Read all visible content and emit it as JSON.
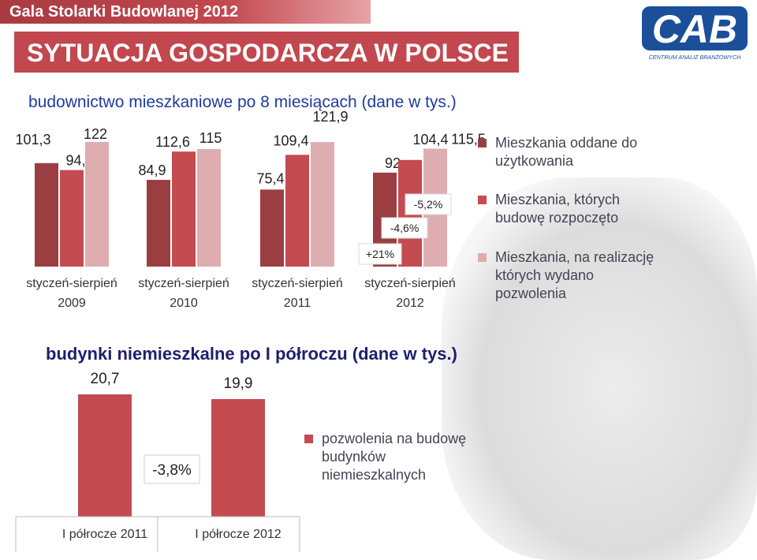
{
  "header": {
    "event_title": "Gala Stolarki Budowlanej 2012",
    "main_title": "SYTUACJA GOSPODARCZA W POLSCE",
    "logo_text": "CENTRUM ANALIZ BRANŻOWYCH",
    "logo_letters": "CAB"
  },
  "colors": {
    "series1": "#9b3e42",
    "series2": "#c44b50",
    "series3": "#deadb0",
    "header_bar": "#c2474e"
  },
  "chart_data": [
    {
      "type": "bar",
      "title": "budownictwo mieszkaniowe po 8 miesiącach (dane w tys.)",
      "categories": [
        {
          "line1": "styczeń-sierpień",
          "line2": "2009"
        },
        {
          "line1": "styczeń-sierpień",
          "line2": "2010"
        },
        {
          "line1": "styczeń-sierpień",
          "line2": "2011"
        },
        {
          "line1": "styczeń-sierpień",
          "line2": "2012"
        }
      ],
      "series": [
        {
          "name": "Mieszkania oddane do użytkowania",
          "values": [
            101.3,
            84.9,
            75.4,
            92
          ],
          "labels": [
            "101,3",
            "84,9",
            "75,4",
            "92"
          ]
        },
        {
          "name": "Mieszkania, których budowę rozpoczęto",
          "values": [
            94.5,
            112.6,
            109.4,
            104.4
          ],
          "labels": [
            "94,5",
            "112,6",
            "109,4",
            "104,4"
          ]
        },
        {
          "name": "Mieszkania, na realizację których wydano pozwolenia",
          "values": [
            122,
            115,
            121.9,
            115.5
          ],
          "labels": [
            "122",
            "115",
            "121,9",
            "115,5"
          ]
        }
      ],
      "annotations": [
        "+21%",
        "-4,6%",
        "-5,2%"
      ]
    },
    {
      "type": "bar",
      "title": "budynki niemieszkalne po I półroczu (dane w tys.)",
      "categories": [
        "I półrocze 2011",
        "I półrocze 2012"
      ],
      "series": [
        {
          "name": "pozwolenia na budowę budynków niemieszkalnych",
          "values": [
            20.7,
            19.9
          ],
          "labels": [
            "20,7",
            "19,9"
          ]
        }
      ],
      "annotations": [
        "-3,8%"
      ]
    }
  ]
}
